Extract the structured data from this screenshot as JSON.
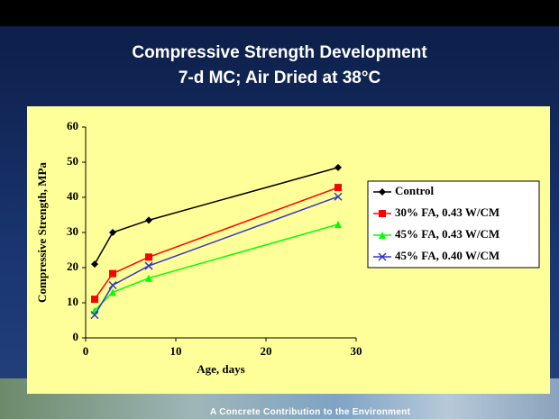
{
  "chart_data": {
    "type": "line",
    "title": "Compressive Strength Development",
    "subtitle": "7-d MC; Air Dried at 38°C",
    "x_label": "Age, days",
    "y_label": "Compressive Strength, MPa",
    "x": [
      1,
      3,
      7,
      28
    ],
    "xlim": [
      0,
      30
    ],
    "xticks": [
      0,
      10,
      20,
      30
    ],
    "ylim": [
      0,
      60
    ],
    "yticks": [
      0,
      10,
      20,
      30,
      40,
      50,
      60
    ],
    "grid": false,
    "legend": "right",
    "series": [
      {
        "name": "Control",
        "color": "#000000",
        "marker": "diamond",
        "values": [
          21,
          30,
          33.5,
          48.5
        ]
      },
      {
        "name": "30% FA, 0.43 W/CM",
        "color": "#ff0000",
        "marker": "square",
        "values": [
          11,
          18.3,
          23,
          42.8
        ]
      },
      {
        "name": "45% FA, 0.43 W/CM",
        "color": "#00ff00",
        "marker": "triangle",
        "values": [
          7.8,
          13,
          17,
          32.3
        ]
      },
      {
        "name": "45% FA, 0.40 W/CM",
        "color": "#3333cc",
        "marker": "x",
        "values": [
          6.5,
          15,
          20.5,
          40.2
        ]
      }
    ]
  },
  "footer": {
    "tagline": "A Concrete Contribution to the Environment"
  }
}
